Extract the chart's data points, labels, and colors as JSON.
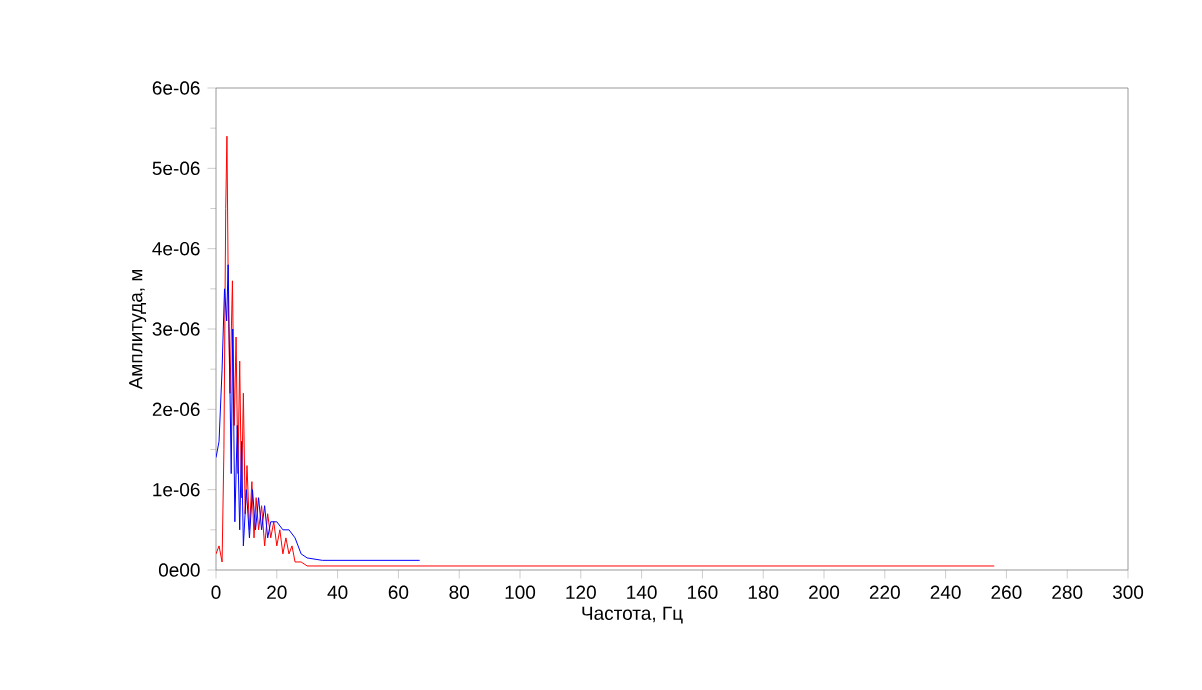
{
  "chart_data": {
    "type": "line",
    "xlabel": "Частота, Гц",
    "ylabel": "Амплитуда, м",
    "xlim": [
      0,
      300
    ],
    "ylim": [
      0,
      6e-06
    ],
    "xticks": [
      0,
      20,
      40,
      60,
      80,
      100,
      120,
      140,
      160,
      180,
      200,
      220,
      240,
      260,
      280,
      300
    ],
    "yticks": [
      {
        "value": 0,
        "label": "0e00"
      },
      {
        "value": 1e-06,
        "label": "1e-06"
      },
      {
        "value": 2e-06,
        "label": "2e-06"
      },
      {
        "value": 3e-06,
        "label": "3e-06"
      },
      {
        "value": 4e-06,
        "label": "4e-06"
      },
      {
        "value": 5e-06,
        "label": "5e-06"
      },
      {
        "value": 6e-06,
        "label": "6e-06"
      }
    ],
    "grid": false,
    "marker": "none",
    "line_style": "solid",
    "series": [
      {
        "color": "#ff0000",
        "x": [
          0,
          1,
          2,
          2.6,
          3.2,
          3.6,
          4.1,
          4.6,
          5.4,
          6,
          6.6,
          7.2,
          7.8,
          8.4,
          9,
          9.6,
          10.2,
          11,
          11.8,
          12.5,
          13.2,
          14,
          15,
          16,
          17,
          18,
          19,
          20,
          21,
          22,
          23,
          24,
          25,
          26,
          28,
          30,
          35,
          40,
          50,
          60,
          80,
          120,
          160,
          200,
          256
        ],
        "values": [
          2e-07,
          3e-07,
          1e-07,
          1.5e-06,
          4.5e-06,
          5.4e-06,
          3.2e-06,
          2.2e-06,
          3.6e-06,
          1.8e-06,
          2.9e-06,
          1.2e-06,
          2.6e-06,
          9e-07,
          2.2e-06,
          7e-07,
          1.3e-06,
          5e-07,
          1.1e-06,
          4e-07,
          9e-07,
          5e-07,
          8e-07,
          3e-07,
          7e-07,
          4e-07,
          6e-07,
          3e-07,
          5e-07,
          2e-07,
          4e-07,
          2e-07,
          3e-07,
          1e-07,
          1e-07,
          5e-08,
          5e-08,
          5e-08,
          5e-08,
          5e-08,
          5e-08,
          5e-08,
          5e-08,
          5e-08,
          5e-08
        ]
      },
      {
        "color": "#0000ff",
        "x": [
          0,
          1,
          2,
          2.8,
          3.5,
          4,
          4.5,
          5,
          5.5,
          6.2,
          7,
          7.8,
          8.4,
          9,
          10,
          11,
          12,
          13,
          14,
          15,
          16,
          17,
          18,
          20,
          22,
          24,
          26,
          28,
          30,
          35,
          40,
          50,
          60,
          67
        ],
        "values": [
          1.4e-06,
          1.6e-06,
          2.5e-06,
          3.5e-06,
          3.1e-06,
          3.8e-06,
          2.5e-06,
          1.2e-06,
          3e-06,
          6e-07,
          1.8e-06,
          5e-07,
          1.6e-06,
          3e-07,
          1e-06,
          4e-07,
          1e-06,
          5e-07,
          9e-07,
          5e-07,
          8e-07,
          4e-07,
          6e-07,
          6e-07,
          5e-07,
          5e-07,
          4e-07,
          2e-07,
          1.5e-07,
          1.2e-07,
          1.2e-07,
          1.2e-07,
          1.2e-07,
          1.2e-07
        ]
      }
    ]
  }
}
